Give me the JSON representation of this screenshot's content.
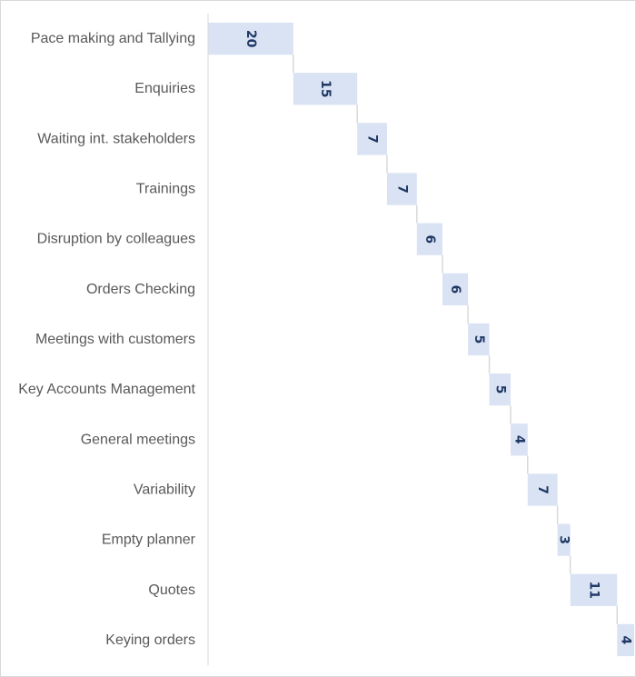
{
  "chart_data": {
    "type": "bar",
    "subtype": "waterfall-horizontal",
    "title": "",
    "xlabel": "",
    "ylabel": "",
    "categories": [
      "Pace making and Tallying",
      "Enquiries",
      "Waiting int. stakeholders",
      "Trainings",
      "Disruption by colleagues",
      "Orders Checking",
      "Meetings with customers",
      "Key Accounts Management",
      "General meetings",
      "Variability",
      "Empty planner",
      "Quotes",
      "Keying orders"
    ],
    "values": [
      20,
      15,
      7,
      7,
      6,
      6,
      5,
      5,
      4,
      7,
      3,
      11,
      4
    ],
    "xlim": [
      0,
      100
    ],
    "grid": false,
    "legend": "none",
    "colors": {
      "bar_fill": "#dae3f3",
      "label_text": "#1f3864",
      "category_text": "#595959",
      "axis_line": "#d9d9d9",
      "connector": "#d9d9d9",
      "border": "#d9d9d9"
    }
  }
}
